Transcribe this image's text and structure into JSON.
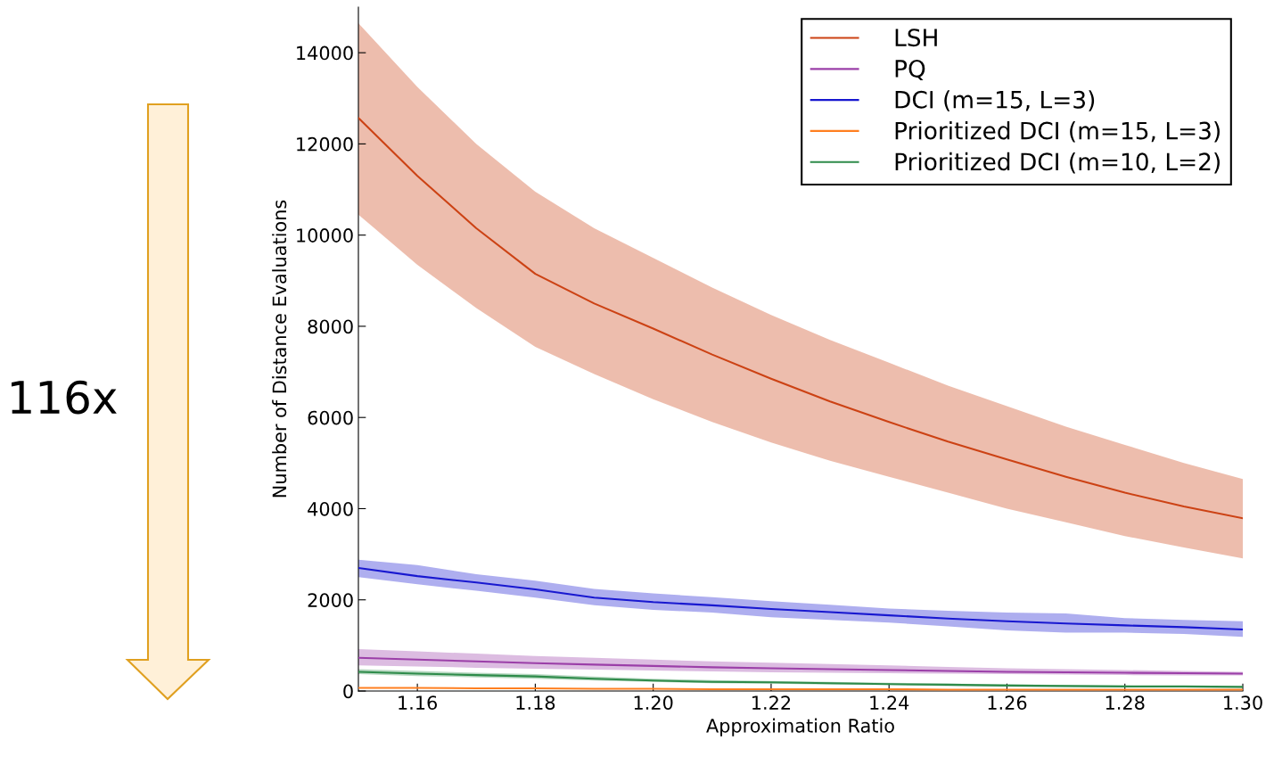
{
  "chart_data": {
    "type": "line",
    "xlabel": "Approximation Ratio",
    "ylabel": "Number of Distance Evaluations",
    "annotations": [
      "116x"
    ],
    "x": [
      1.15,
      1.16,
      1.17,
      1.18,
      1.19,
      1.2,
      1.21,
      1.22,
      1.23,
      1.24,
      1.25,
      1.26,
      1.27,
      1.28,
      1.29,
      1.3
    ],
    "series": [
      {
        "name": "LSH",
        "color": "#cc4214",
        "values": [
          12570,
          11300,
          10150,
          9150,
          8500,
          7950,
          7380,
          6850,
          6350,
          5900,
          5470,
          5080,
          4700,
          4350,
          4050,
          3790
        ],
        "lower": [
          10450,
          9350,
          8400,
          7550,
          6950,
          6400,
          5900,
          5450,
          5050,
          4700,
          4350,
          4000,
          3700,
          3400,
          3150,
          2910
        ],
        "upper": [
          14650,
          13250,
          12000,
          10950,
          10150,
          9500,
          8850,
          8250,
          7700,
          7200,
          6700,
          6250,
          5800,
          5400,
          5000,
          4650
        ]
      },
      {
        "name": "PQ",
        "color": "#9b3fa8",
        "values": [
          730,
          690,
          650,
          610,
          580,
          550,
          520,
          500,
          480,
          460,
          440,
          420,
          410,
          400,
          390,
          380
        ],
        "lower": [
          560,
          540,
          510,
          490,
          470,
          450,
          430,
          410,
          400,
          390,
          380,
          370,
          360,
          350,
          340,
          340
        ],
        "upper": [
          920,
          870,
          820,
          770,
          730,
          690,
          650,
          620,
          590,
          560,
          530,
          500,
          480,
          460,
          440,
          420
        ]
      },
      {
        "name": "DCI (m=15, L=3)",
        "color": "#1818d0",
        "values": [
          2700,
          2520,
          2380,
          2230,
          2050,
          1950,
          1880,
          1800,
          1730,
          1660,
          1590,
          1530,
          1480,
          1440,
          1400,
          1350
        ],
        "lower": [
          2500,
          2340,
          2200,
          2050,
          1880,
          1780,
          1720,
          1620,
          1560,
          1500,
          1420,
          1330,
          1280,
          1280,
          1250,
          1190
        ],
        "upper": [
          2880,
          2760,
          2560,
          2420,
          2240,
          2140,
          2060,
          1970,
          1890,
          1810,
          1760,
          1720,
          1700,
          1600,
          1560,
          1530
        ]
      },
      {
        "name": "Prioritized DCI (m=15, L=3)",
        "color": "#ff7f20",
        "values": [
          70,
          70,
          60,
          60,
          50,
          50,
          40,
          40,
          40,
          40,
          30,
          30,
          30,
          30,
          30,
          30
        ]
      },
      {
        "name": "Prioritized DCI (m=10, L=2)",
        "color": "#2e8b4a",
        "values": [
          420,
          380,
          350,
          320,
          270,
          230,
          200,
          190,
          170,
          150,
          140,
          120,
          110,
          100,
          100,
          90
        ],
        "lower": [
          370,
          330,
          300,
          270,
          230,
          200,
          170,
          160,
          140,
          130,
          110,
          100,
          90,
          80,
          80,
          70
        ],
        "upper": [
          480,
          440,
          400,
          370,
          320,
          270,
          240,
          220,
          200,
          180,
          160,
          150,
          130,
          120,
          110,
          110
        ]
      }
    ],
    "xlim": [
      1.15,
      1.3
    ],
    "xticks": [
      {
        "value": 1.16,
        "label": "1.16"
      },
      {
        "value": 1.18,
        "label": "1.18"
      },
      {
        "value": 1.2,
        "label": "1.20"
      },
      {
        "value": 1.22,
        "label": "1.22"
      },
      {
        "value": 1.24,
        "label": "1.24"
      },
      {
        "value": 1.26,
        "label": "1.26"
      },
      {
        "value": 1.28,
        "label": "1.28"
      },
      {
        "value": 1.3,
        "label": "1.30"
      }
    ],
    "ylim": [
      0,
      15000
    ],
    "yticks": [
      0,
      2000,
      4000,
      6000,
      8000,
      10000,
      12000,
      14000
    ],
    "legend": "top right",
    "grid": false
  }
}
